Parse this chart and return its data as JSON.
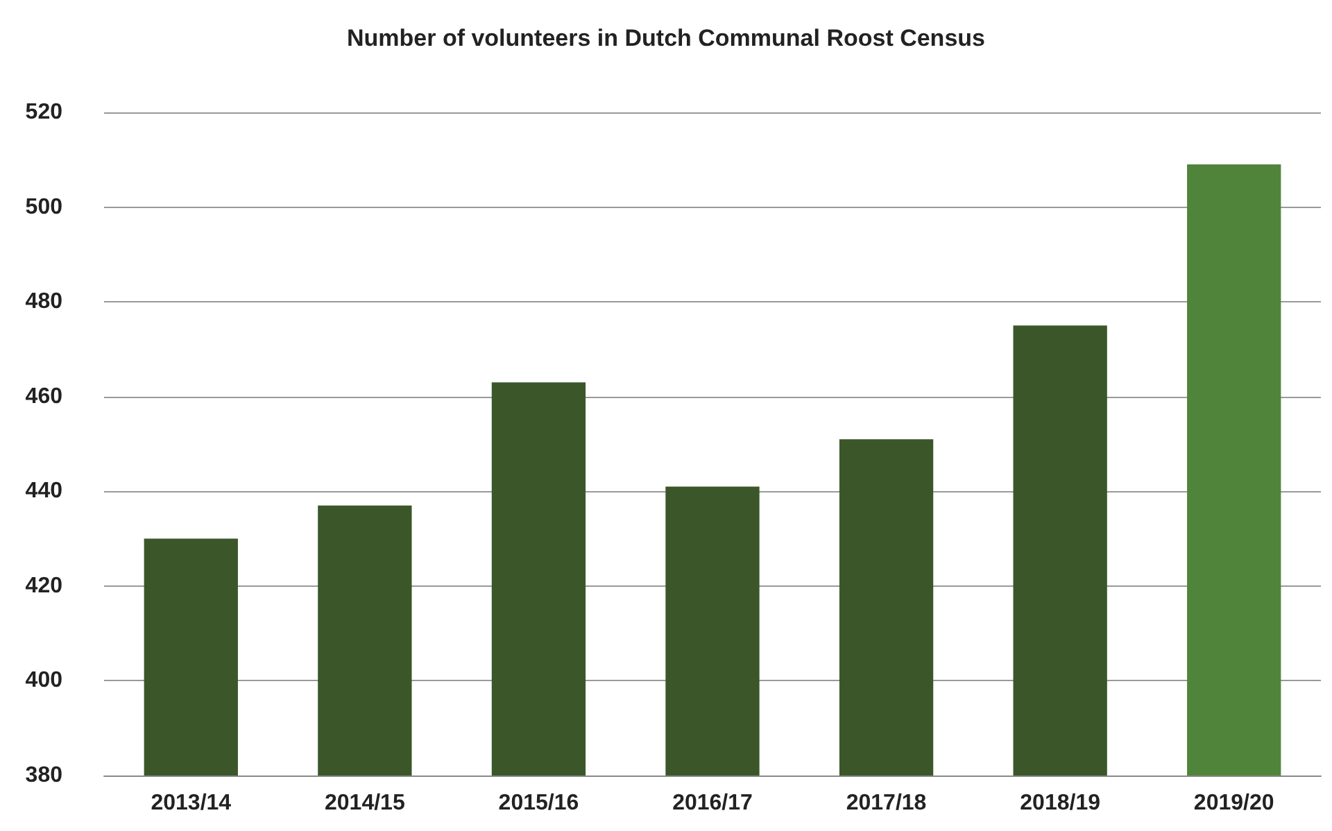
{
  "chart_data": {
    "type": "bar",
    "title": "Number of volunteers in Dutch Communal Roost Census",
    "categories": [
      "2013/14",
      "2014/15",
      "2015/16",
      "2016/17",
      "2017/18",
      "2018/19",
      "2019/20"
    ],
    "values": [
      430,
      437,
      463,
      441,
      451,
      475,
      509
    ],
    "colors": [
      "#3b572a",
      "#3b572a",
      "#3b572a",
      "#3b572a",
      "#3b572a",
      "#3b572a",
      "#50843a"
    ],
    "ylim": [
      380,
      520
    ],
    "yticks": [
      380,
      400,
      420,
      440,
      460,
      480,
      500,
      520
    ],
    "grid": "y"
  }
}
